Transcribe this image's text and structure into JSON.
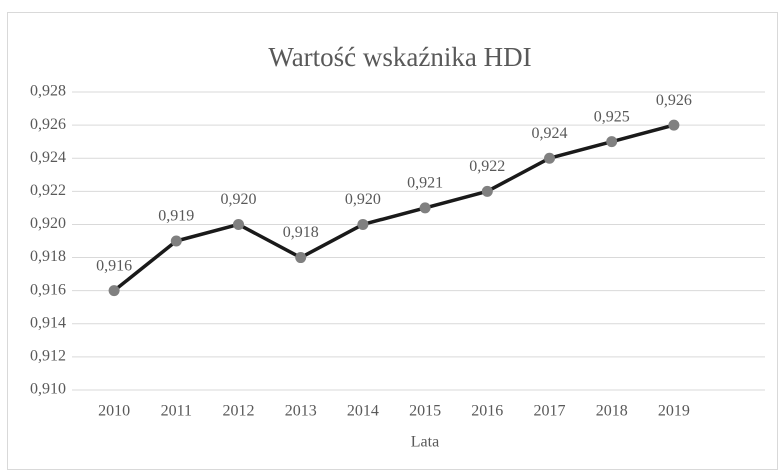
{
  "chart_data": {
    "type": "line",
    "title": "Wartość wskaźnika HDI",
    "x_label": "Lata",
    "categories": [
      "2010",
      "2011",
      "2012",
      "2013",
      "2014",
      "2015",
      "2016",
      "2017",
      "2018",
      "2019"
    ],
    "values": [
      0.916,
      0.919,
      0.92,
      0.918,
      0.92,
      0.921,
      0.922,
      0.924,
      0.925,
      0.926
    ],
    "value_labels": [
      "0,916",
      "0,919",
      "0,920",
      "0,918",
      "0,920",
      "0,921",
      "0,922",
      "0,924",
      "0,925",
      "0,926"
    ],
    "color": "#1a1a1a",
    "marker_color": "#808080",
    "ylim": [
      0.91,
      0.928
    ],
    "yticks": [
      {
        "value": 0.91,
        "label": "0,910"
      },
      {
        "value": 0.912,
        "label": "0,912"
      },
      {
        "value": 0.914,
        "label": "0,914"
      },
      {
        "value": 0.916,
        "label": "0,916"
      },
      {
        "value": 0.918,
        "label": "0,918"
      },
      {
        "value": 0.92,
        "label": "0,920"
      },
      {
        "value": 0.922,
        "label": "0,922"
      },
      {
        "value": 0.924,
        "label": "0,924"
      },
      {
        "value": 0.926,
        "label": "0,926"
      },
      {
        "value": 0.928,
        "label": "0,928"
      }
    ],
    "grid": true
  }
}
